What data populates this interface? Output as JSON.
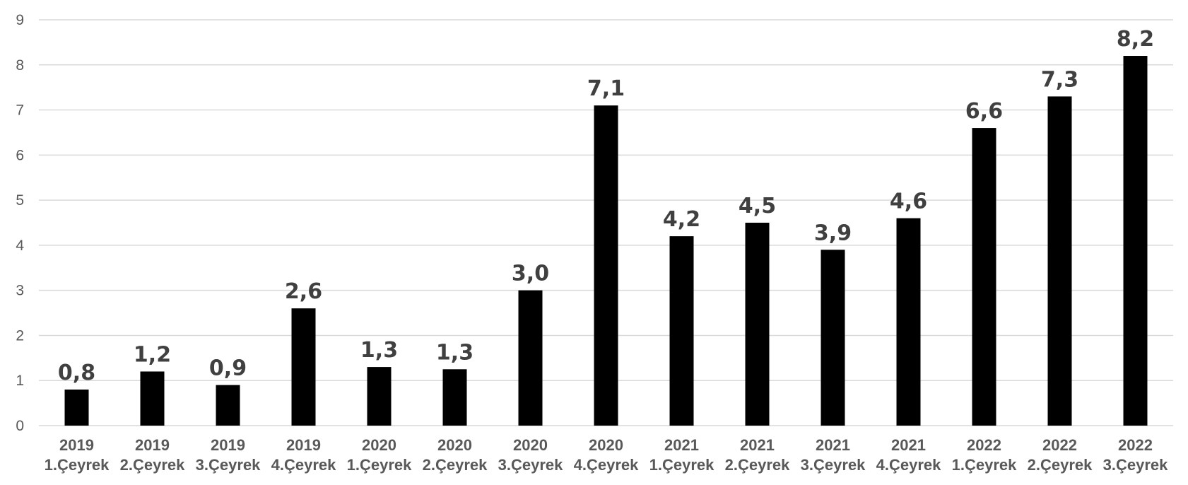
{
  "chart_data": {
    "type": "bar",
    "categories": [
      {
        "year": "2019",
        "quarter": "1.Çeyrek"
      },
      {
        "year": "2019",
        "quarter": "2.Çeyrek"
      },
      {
        "year": "2019",
        "quarter": "3.Çeyrek"
      },
      {
        "year": "2019",
        "quarter": "4.Çeyrek"
      },
      {
        "year": "2020",
        "quarter": "1.Çeyrek"
      },
      {
        "year": "2020",
        "quarter": "2.Çeyrek"
      },
      {
        "year": "2020",
        "quarter": "3.Çeyrek"
      },
      {
        "year": "2020",
        "quarter": "4.Çeyrek"
      },
      {
        "year": "2021",
        "quarter": "1.Çeyrek"
      },
      {
        "year": "2021",
        "quarter": "2.Çeyrek"
      },
      {
        "year": "2021",
        "quarter": "3.Çeyrek"
      },
      {
        "year": "2021",
        "quarter": "4.Çeyrek"
      },
      {
        "year": "2022",
        "quarter": "1.Çeyrek"
      },
      {
        "year": "2022",
        "quarter": "2.Çeyrek"
      },
      {
        "year": "2022",
        "quarter": "3.Çeyrek"
      }
    ],
    "values": [
      0.8,
      1.2,
      0.9,
      2.6,
      1.3,
      1.25,
      3.0,
      7.1,
      4.2,
      4.5,
      3.9,
      4.6,
      6.6,
      7.3,
      8.2
    ],
    "data_labels": [
      "0,8",
      "1,2",
      "0,9",
      "2,6",
      "1,3",
      "1,3",
      "3,0",
      "7,1",
      "4,2",
      "4,5",
      "3,9",
      "4,6",
      "6,6",
      "7,3",
      "8,2"
    ],
    "yticks": [
      "0",
      "1",
      "2",
      "3",
      "4",
      "5",
      "6",
      "7",
      "8",
      "9"
    ],
    "ylim": [
      0,
      9
    ],
    "grid": true,
    "legend": "none",
    "title": "",
    "xlabel": "",
    "ylabel": "",
    "colors": {
      "bar": "#000000",
      "gridline": "#d9d9d9",
      "tick_text": "#595959",
      "data_label": "#404040"
    }
  }
}
